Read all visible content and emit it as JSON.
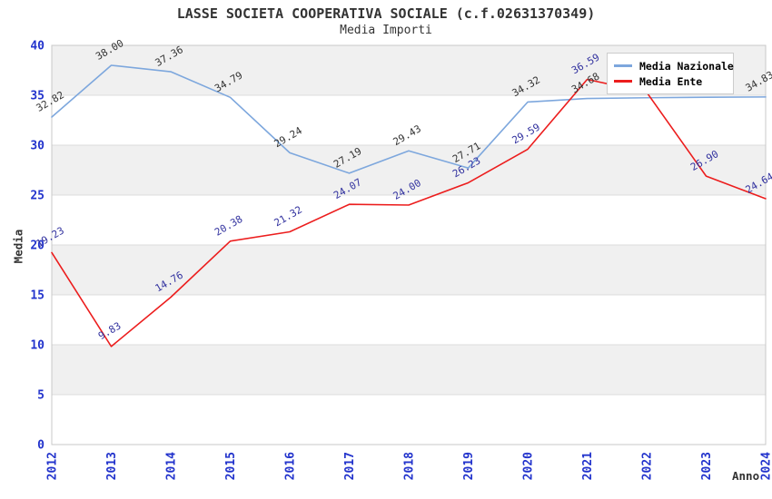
{
  "header": {
    "title": "LASSE SOCIETA COOPERATIVA SOCIALE (c.f.02631370349)",
    "subtitle": "Media Importi"
  },
  "chart_data": {
    "type": "line",
    "x": [
      2012,
      2013,
      2014,
      2015,
      2016,
      2017,
      2018,
      2019,
      2020,
      2021,
      2022,
      2023,
      2024
    ],
    "series": [
      {
        "name": "Media Nazionale",
        "color": "#7DA7DD",
        "label_color": "#333333",
        "values": [
          32.82,
          38.0,
          37.36,
          34.79,
          29.24,
          27.19,
          29.43,
          27.71,
          34.32,
          34.68,
          34.75,
          34.8,
          34.83
        ],
        "labels": [
          "32.82",
          "38.00",
          "37.36",
          "34.79",
          "29.24",
          "27.19",
          "29.43",
          "27.71",
          "34.32",
          "34.68",
          "",
          "",
          "34.83"
        ]
      },
      {
        "name": "Media Ente",
        "color": "#EC1D1D",
        "label_color": "#32329F",
        "values": [
          19.23,
          9.83,
          14.76,
          20.38,
          21.32,
          24.07,
          24.0,
          26.23,
          29.59,
          36.59,
          35.3,
          26.9,
          24.64
        ],
        "labels": [
          "19.23",
          "9.83",
          "14.76",
          "20.38",
          "21.32",
          "24.07",
          "24.00",
          "26.23",
          "29.59",
          "36.59",
          "",
          "26.90",
          "24.64"
        ]
      }
    ],
    "xlabel": "Anno",
    "ylabel": "Media",
    "ylim": [
      0,
      40
    ],
    "yticks": [
      0,
      5,
      10,
      15,
      20,
      25,
      30,
      35,
      40
    ],
    "grid": true,
    "legend_position": "top-right",
    "tick_color": "#2233CC",
    "grid_color": "#DCDCDC",
    "border_color": "#C8C8C8",
    "band_colors": [
      "#FFFFFF",
      "#F0F0F0"
    ]
  }
}
